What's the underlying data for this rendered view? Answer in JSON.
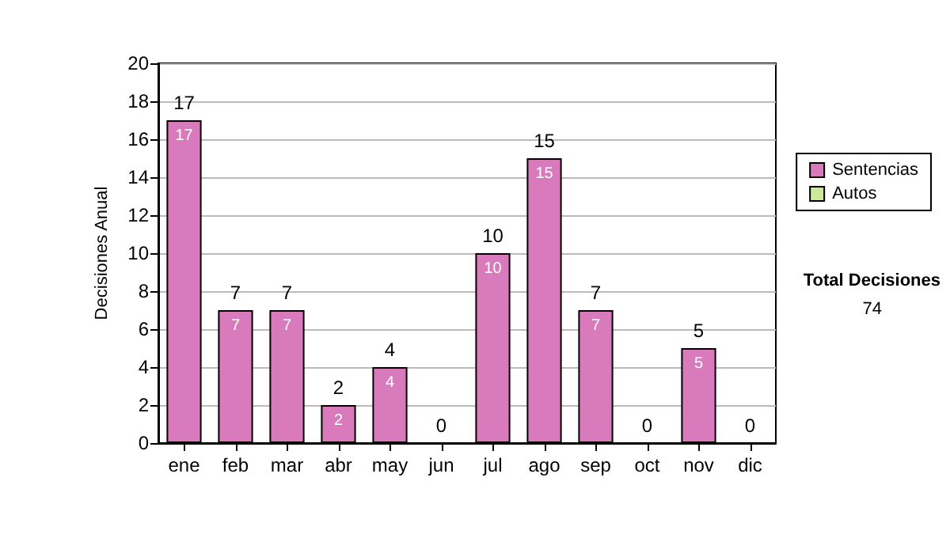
{
  "chart_data": {
    "type": "bar",
    "ylabel": "Decisiones Anual",
    "categories": [
      "ene",
      "feb",
      "mar",
      "abr",
      "may",
      "jun",
      "jul",
      "ago",
      "sep",
      "oct",
      "nov",
      "dic"
    ],
    "series": [
      {
        "name": "Sentencias",
        "color": "#d97abc",
        "values": [
          17,
          7,
          7,
          2,
          4,
          0,
          10,
          15,
          7,
          0,
          5,
          0
        ],
        "value_labels": [
          "17",
          "7",
          "7",
          "2",
          "4",
          null,
          "10",
          "15",
          "7",
          null,
          "5",
          null
        ]
      },
      {
        "name": "Autos",
        "color": "#cce89a",
        "values": [
          0,
          0,
          0,
          0,
          0,
          0,
          0,
          0,
          0,
          0,
          0,
          0
        ]
      }
    ],
    "stacked": true,
    "totals": [
      "17",
      "7",
      "7",
      "2",
      "4",
      "0",
      "10",
      "15",
      "7",
      "0",
      "5",
      "0"
    ],
    "ylim": [
      0,
      20
    ],
    "yticks": [
      0,
      2,
      4,
      6,
      8,
      10,
      12,
      14,
      16,
      18,
      20
    ],
    "grid": "y",
    "legend": "right",
    "annotations": [
      "Total Decisiones",
      "74"
    ]
  }
}
